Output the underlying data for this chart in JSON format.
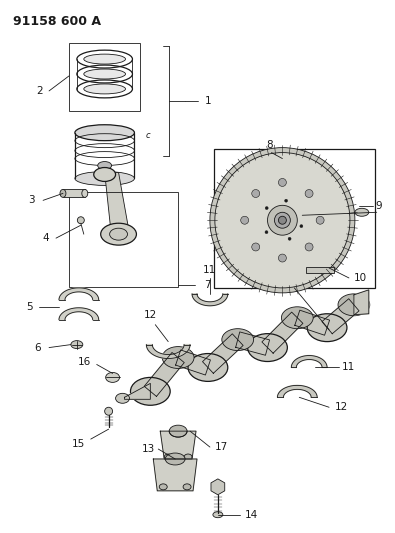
{
  "title": "91158 600 A",
  "bg_color": "#ffffff",
  "line_color": "#1a1a1a",
  "figsize": [
    3.95,
    5.33
  ],
  "dpi": 100,
  "label_fontsize": 7.5,
  "title_fontsize": 9
}
